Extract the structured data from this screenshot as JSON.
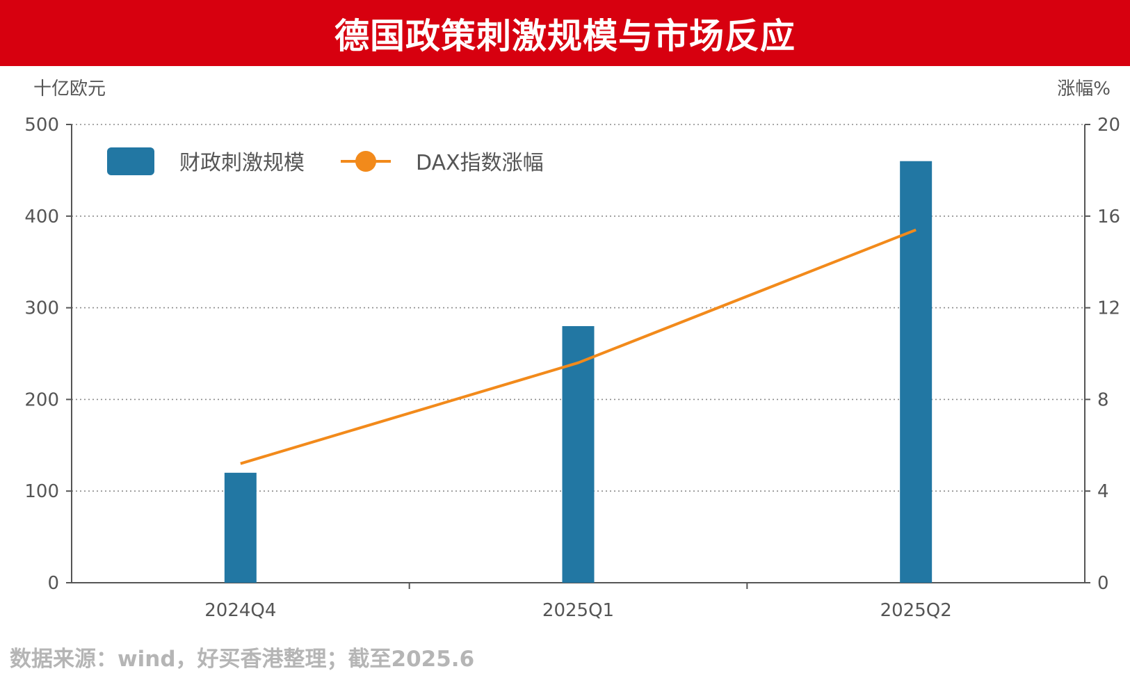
{
  "title": "德国政策刺激规模与市场反应",
  "source": "数据来源：wind，好买香港整理；截至2025.6",
  "chart_data": {
    "type": "bar",
    "categories": [
      "2024Q4",
      "2025Q1",
      "2025Q2"
    ],
    "series": [
      {
        "name": "财政刺激规模",
        "type": "bar",
        "axis": "left",
        "values": [
          120,
          280,
          460
        ],
        "color": "#2277a3"
      },
      {
        "name": "DAX指数涨幅",
        "type": "line",
        "axis": "right",
        "values": [
          5.2,
          9.6,
          15.4
        ],
        "color": "#f28a1b"
      }
    ],
    "y_left": {
      "label": "十亿欧元",
      "range": [
        0,
        500
      ],
      "ticks": [
        0,
        100,
        200,
        300,
        400,
        500
      ]
    },
    "y_right": {
      "label": "涨幅%",
      "range": [
        0,
        20
      ],
      "ticks": [
        0,
        4,
        8,
        12,
        16,
        20
      ]
    },
    "grid": "horizontal-dotted",
    "legend_position": "top-left"
  }
}
